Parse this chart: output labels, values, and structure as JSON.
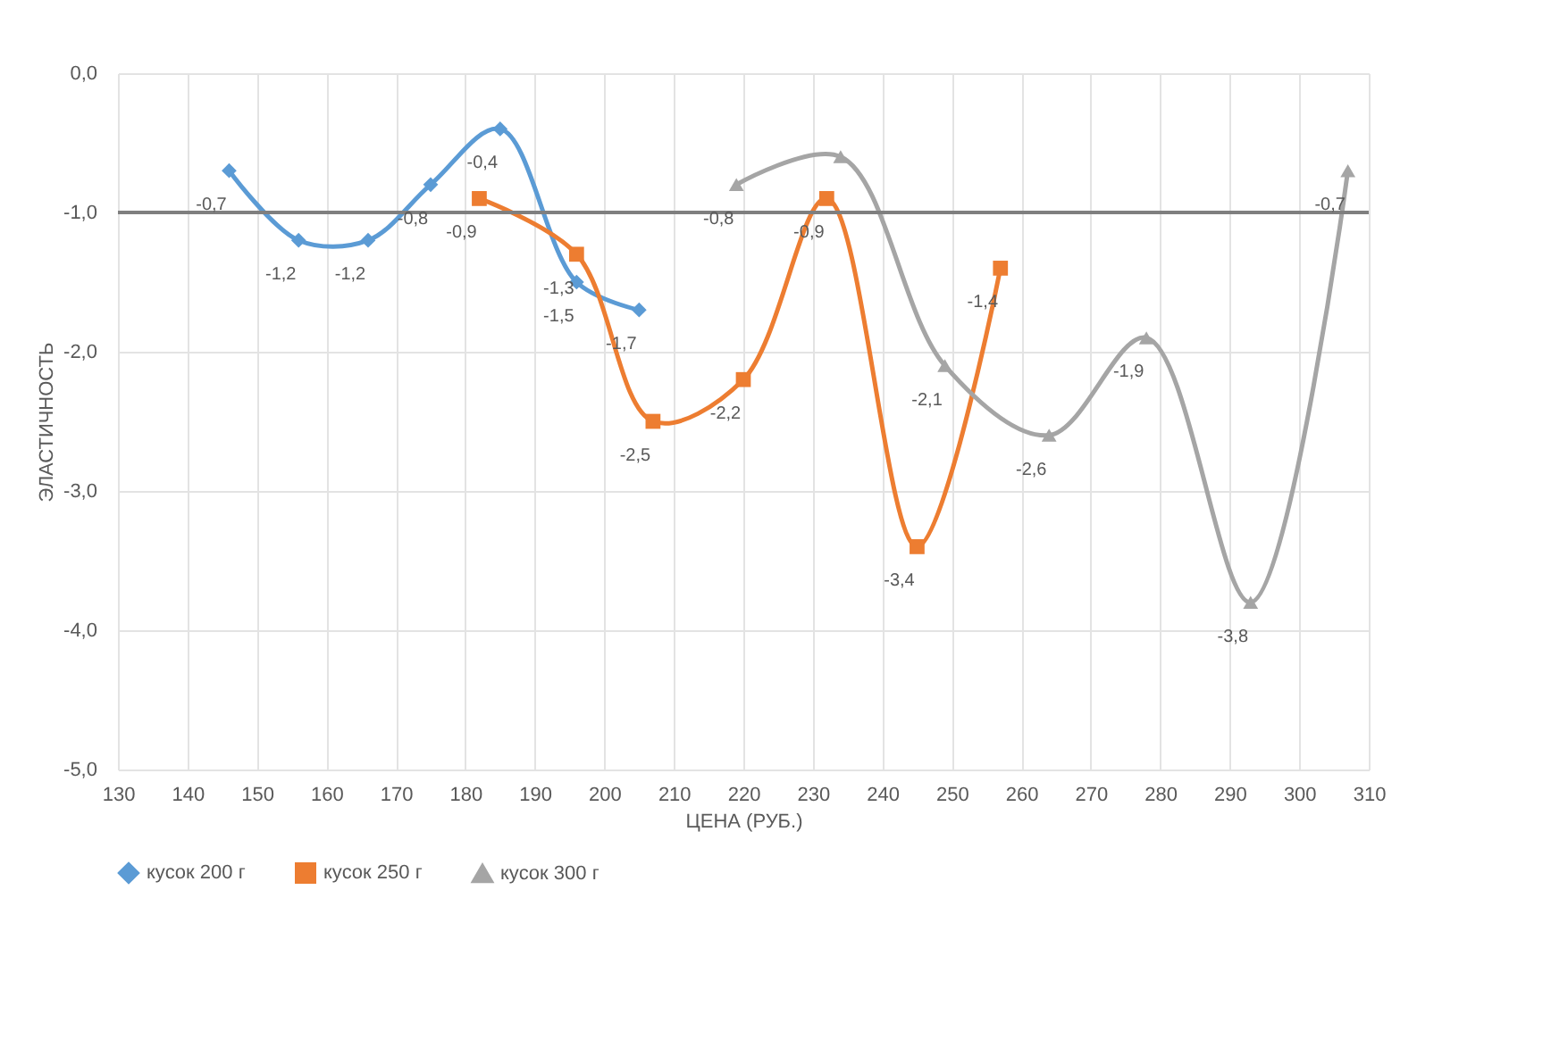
{
  "chart_data": {
    "type": "line",
    "xlabel": "ЦЕНА (РУБ.)",
    "ylabel": "ЭЛАСТИЧНОСТЬ",
    "xlim": [
      130,
      310
    ],
    "xticks": [
      130,
      140,
      150,
      160,
      170,
      180,
      190,
      200,
      210,
      220,
      230,
      240,
      250,
      260,
      270,
      280,
      290,
      300,
      310
    ],
    "ylim": [
      -5,
      0
    ],
    "yticks": [
      {
        "value": 0,
        "label": "0,0"
      },
      {
        "value": -1,
        "label": "-1,0"
      },
      {
        "value": -2,
        "label": "-2,0"
      },
      {
        "value": -3,
        "label": "-3,0"
      },
      {
        "value": -4,
        "label": "-4,0"
      },
      {
        "value": -5,
        "label": "-5,0"
      }
    ],
    "grid": true,
    "legend": "bottom",
    "ref_lines": [
      {
        "axis": "y",
        "value": -1,
        "color": "#7f7f7f"
      }
    ],
    "series": [
      {
        "name": "кусок 200 г",
        "color": "#5b9bd5",
        "marker": "diamond",
        "x": [
          146,
          156,
          166,
          175,
          185,
          196,
          205
        ],
        "values": [
          -0.7,
          -1.2,
          -1.2,
          -0.8,
          -0.4,
          -1.5,
          -1.7
        ],
        "value_labels": [
          "-0,7",
          "-1,2",
          "-1,2",
          "-0,8",
          "-0,4",
          "-1,5",
          "-1,7"
        ]
      },
      {
        "name": "кусок 250 г",
        "color": "#ed7d31",
        "marker": "square",
        "x": [
          182,
          196,
          207,
          220,
          232,
          245,
          257
        ],
        "values": [
          -0.9,
          -1.3,
          -2.5,
          -2.2,
          -0.9,
          -3.4,
          -1.4
        ],
        "value_labels": [
          "-0,9",
          "-1,3",
          "-2,5",
          "-2,2",
          "-0,9",
          "-3,4",
          "-1,4"
        ]
      },
      {
        "name": "кусок 300 г",
        "color": "#a5a5a5",
        "marker": "triangle",
        "x": [
          219,
          234,
          249,
          264,
          278,
          293,
          307
        ],
        "values": [
          -0.8,
          -0.6,
          -2.1,
          -2.6,
          -1.9,
          -3.8,
          -0.7
        ],
        "value_labels": [
          "-0,8",
          null,
          "-2,1",
          "-2,6",
          "-1,9",
          "-3,8",
          "-0,7"
        ]
      }
    ]
  }
}
